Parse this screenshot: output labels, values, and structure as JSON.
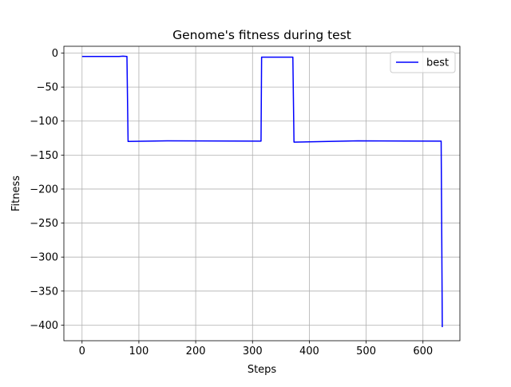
{
  "chart_data": {
    "type": "line",
    "title": "Genome's fitness during test",
    "xlabel": "Steps",
    "ylabel": "Fitness",
    "xlim": [
      -32,
      665
    ],
    "ylim": [
      -423,
      10
    ],
    "xticks": [
      0,
      100,
      200,
      300,
      400,
      500,
      600
    ],
    "yticks": [
      0,
      -50,
      -100,
      -150,
      -200,
      -250,
      -300,
      -350,
      -400
    ],
    "xtick_labels": [
      "0",
      "100",
      "200",
      "300",
      "400",
      "500",
      "600"
    ],
    "ytick_labels": [
      "0",
      "−50",
      "−100",
      "−150",
      "−200",
      "−250",
      "−300",
      "−350",
      "−400"
    ],
    "grid": true,
    "legend_position": "top-right",
    "series": [
      {
        "name": "best",
        "color": "#0000ff",
        "x": [
          0,
          65,
          72,
          79,
          81,
          150,
          315,
          316,
          371,
          373,
          485,
          632,
          633,
          634
        ],
        "y": [
          -5,
          -5,
          -4.5,
          -5,
          -130,
          -129,
          -129.5,
          -6,
          -6,
          -131,
          -129,
          -129.5,
          -260,
          -403
        ]
      }
    ]
  }
}
